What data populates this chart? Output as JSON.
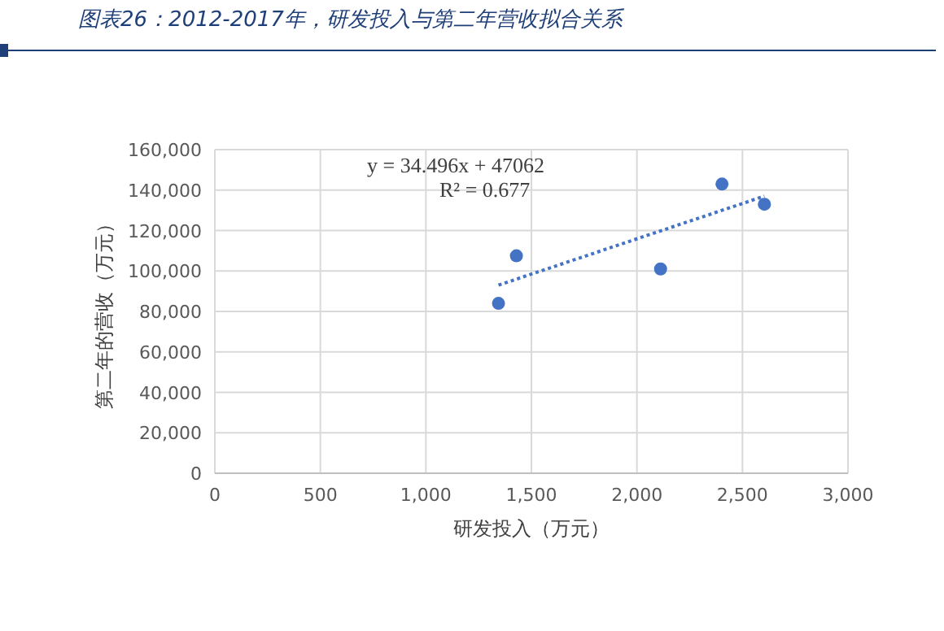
{
  "chart_data": {
    "type": "scatter",
    "title": "图表26：2012-2017年，研发投入与第二年营收拟合关系",
    "xlabel": "研发投入（万元）",
    "ylabel": "第二年的营收（万元）",
    "x": [
      1344,
      1429,
      2112,
      2403,
      2604
    ],
    "series": [
      {
        "color": "#4472c4",
        "values": [
          84000,
          107500,
          101000,
          143000,
          133000
        ],
        "marker": "circle"
      },
      {
        "type": "line",
        "x": [
          1344,
          2604
        ],
        "values": [
          93000,
          137000
        ],
        "color": "#4472c4",
        "line_style": "dotted",
        "marker": "none"
      }
    ],
    "annotations": [
      "y = 34.496x + 47062",
      "R² = 0.677"
    ],
    "xlim": [
      0,
      3000
    ],
    "xticks": [
      {
        "value": 0,
        "label": "0"
      },
      {
        "value": 500,
        "label": "500"
      },
      {
        "value": 1000,
        "label": "1,000"
      },
      {
        "value": 1500,
        "label": "1,500"
      },
      {
        "value": 2000,
        "label": "2,000"
      },
      {
        "value": 2500,
        "label": "2,500"
      },
      {
        "value": 3000,
        "label": "3,000"
      }
    ],
    "ylim": [
      0,
      160000
    ],
    "yticks": [
      {
        "value": 0,
        "label": "0"
      },
      {
        "value": 20000,
        "label": "20,000"
      },
      {
        "value": 40000,
        "label": "40,000"
      },
      {
        "value": 60000,
        "label": "60,000"
      },
      {
        "value": 80000,
        "label": "80,000"
      },
      {
        "value": 100000,
        "label": "100,000"
      },
      {
        "value": 120000,
        "label": "120,000"
      },
      {
        "value": 140000,
        "label": "140,000"
      },
      {
        "value": 160000,
        "label": "160,000"
      }
    ],
    "grid": true
  }
}
